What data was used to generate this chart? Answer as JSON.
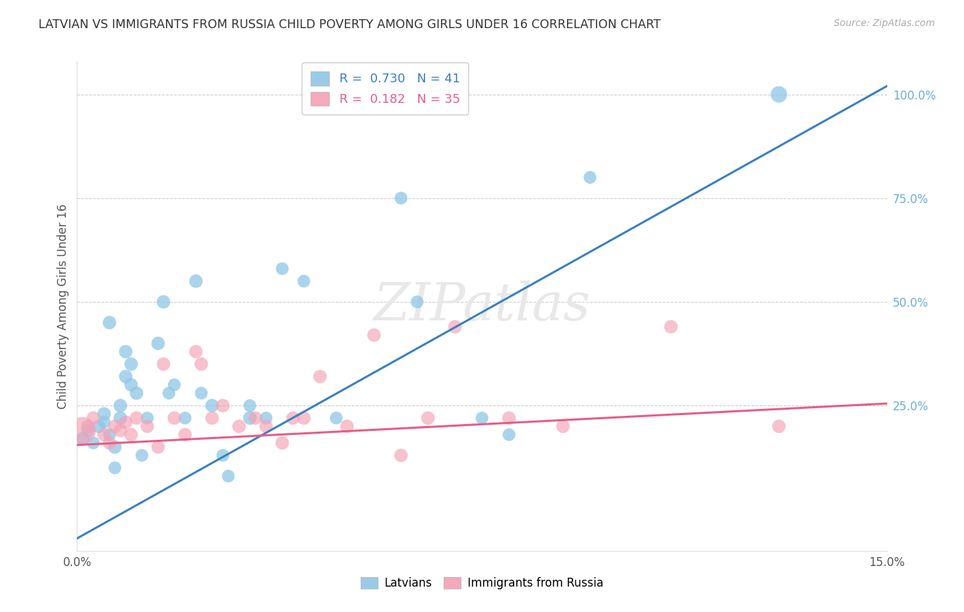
{
  "title": "LATVIAN VS IMMIGRANTS FROM RUSSIA CHILD POVERTY AMONG GIRLS UNDER 16 CORRELATION CHART",
  "source": "Source: ZipAtlas.com",
  "ylabel": "Child Poverty Among Girls Under 16",
  "color_latvians": "#8ec6e6",
  "color_russia": "#f4a0b5",
  "color_line_latvians": "#3a7fc1",
  "color_line_russia": "#e85c85",
  "legend_latvians_R": "0.730",
  "legend_latvians_N": "41",
  "legend_russia_R": "0.182",
  "legend_russia_N": "35",
  "lv_line_x0": 0.0,
  "lv_line_y0": -0.07,
  "lv_line_x1": 0.15,
  "lv_line_y1": 1.02,
  "ru_line_x0": 0.0,
  "ru_line_y0": 0.155,
  "ru_line_x1": 0.15,
  "ru_line_y1": 0.255,
  "xmin": 0.0,
  "xmax": 0.15,
  "ymin": -0.1,
  "ymax": 1.08,
  "right_yticks": [
    0.25,
    0.5,
    0.75,
    1.0
  ],
  "right_yticklabels": [
    "25.0%",
    "50.0%",
    "75.0%",
    "100.0%"
  ],
  "grid_color": "#cccccc",
  "background_color": "#ffffff",
  "watermark": "ZIPatlas",
  "latvians_x": [
    0.001,
    0.002,
    0.003,
    0.004,
    0.005,
    0.005,
    0.006,
    0.007,
    0.007,
    0.008,
    0.009,
    0.009,
    0.01,
    0.01,
    0.011,
    0.012,
    0.013,
    0.015,
    0.016,
    0.017,
    0.018,
    0.02,
    0.022,
    0.023,
    0.025,
    0.027,
    0.028,
    0.032,
    0.035,
    0.038,
    0.042,
    0.048,
    0.06,
    0.063,
    0.075,
    0.08,
    0.095,
    0.13,
    0.006,
    0.008,
    0.032
  ],
  "latvians_y": [
    0.17,
    0.19,
    0.16,
    0.2,
    0.21,
    0.23,
    0.18,
    0.15,
    0.1,
    0.22,
    0.38,
    0.32,
    0.3,
    0.35,
    0.28,
    0.13,
    0.22,
    0.4,
    0.5,
    0.28,
    0.3,
    0.22,
    0.55,
    0.28,
    0.25,
    0.13,
    0.08,
    0.25,
    0.22,
    0.58,
    0.55,
    0.22,
    0.75,
    0.5,
    0.22,
    0.18,
    0.8,
    1.0,
    0.45,
    0.25,
    0.22
  ],
  "latvians_size": [
    200,
    200,
    180,
    200,
    180,
    200,
    180,
    200,
    180,
    200,
    200,
    200,
    200,
    200,
    200,
    180,
    180,
    200,
    200,
    180,
    180,
    180,
    200,
    180,
    200,
    180,
    180,
    180,
    180,
    180,
    180,
    180,
    180,
    180,
    180,
    180,
    180,
    300,
    200,
    200,
    200
  ],
  "russia_x": [
    0.001,
    0.002,
    0.003,
    0.005,
    0.006,
    0.007,
    0.008,
    0.009,
    0.01,
    0.011,
    0.013,
    0.015,
    0.016,
    0.018,
    0.02,
    0.022,
    0.023,
    0.025,
    0.027,
    0.03,
    0.033,
    0.035,
    0.038,
    0.04,
    0.042,
    0.045,
    0.05,
    0.055,
    0.06,
    0.065,
    0.07,
    0.08,
    0.09,
    0.11,
    0.13
  ],
  "russia_y": [
    0.19,
    0.2,
    0.22,
    0.18,
    0.16,
    0.2,
    0.19,
    0.21,
    0.18,
    0.22,
    0.2,
    0.15,
    0.35,
    0.22,
    0.18,
    0.38,
    0.35,
    0.22,
    0.25,
    0.2,
    0.22,
    0.2,
    0.16,
    0.22,
    0.22,
    0.32,
    0.2,
    0.42,
    0.13,
    0.22,
    0.44,
    0.22,
    0.2,
    0.44,
    0.2
  ],
  "russia_size": [
    800,
    200,
    200,
    200,
    200,
    200,
    200,
    200,
    200,
    200,
    200,
    200,
    200,
    200,
    200,
    200,
    200,
    200,
    200,
    200,
    200,
    200,
    200,
    200,
    200,
    200,
    200,
    200,
    200,
    200,
    200,
    200,
    200,
    200,
    200
  ]
}
